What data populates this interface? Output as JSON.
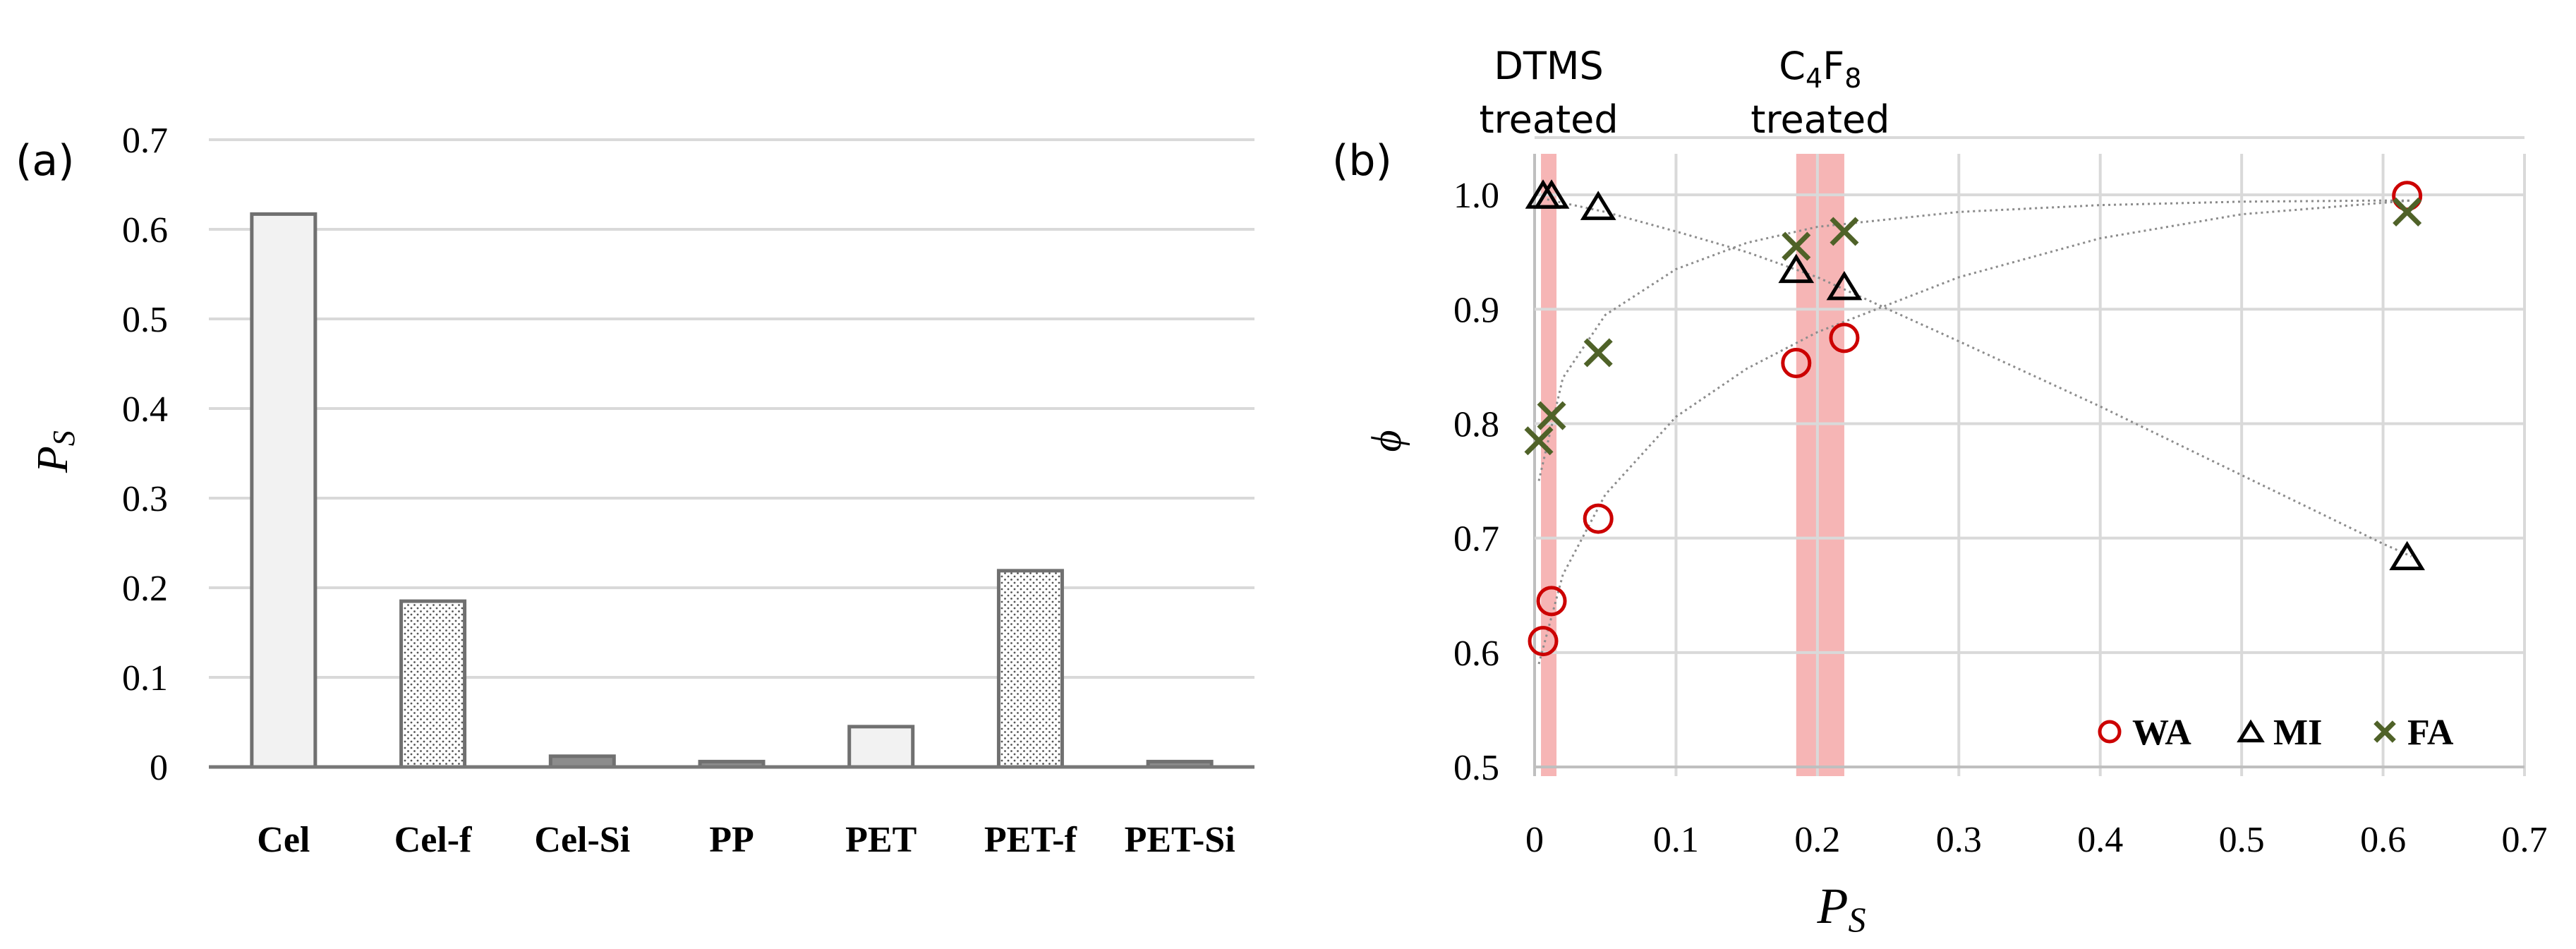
{
  "chart_data": [
    {
      "type": "bar",
      "panel_label": "(a)",
      "categories": [
        "Cel",
        "Cel-f",
        "Cel-Si",
        "PP",
        "PET",
        "PET-f",
        "PET-Si"
      ],
      "values": [
        0.617,
        0.185,
        0.012,
        0.006,
        0.045,
        0.219,
        0.006
      ],
      "bar_fill": [
        "solid",
        "dotted",
        "dark",
        "dark",
        "solid",
        "dotted",
        "dark"
      ],
      "ylabel": "P",
      "ylabel_sub": "S",
      "xlabel": "",
      "ylim": [
        0,
        0.7
      ],
      "yticks": [
        0,
        0.1,
        0.2,
        0.3,
        0.4,
        0.5,
        0.6,
        0.7
      ],
      "ytick_labels": [
        "0",
        "0.1",
        "0.2",
        "0.3",
        "0.4",
        "0.5",
        "0.6",
        "0.7"
      ],
      "grid": true
    },
    {
      "type": "scatter",
      "panel_label": "(b)",
      "xlabel": "P",
      "xlabel_sub": "S",
      "ylabel": "ϕ",
      "xlim": [
        0,
        0.7
      ],
      "ylim": [
        0.5,
        1.05
      ],
      "xticks": [
        0,
        0.1,
        0.2,
        0.3,
        0.4,
        0.5,
        0.6,
        0.7
      ],
      "xtick_labels": [
        "0",
        "0.1",
        "0.2",
        "0.3",
        "0.4",
        "0.5",
        "0.6",
        "0.7"
      ],
      "yticks": [
        0.5,
        0.6,
        0.7,
        0.8,
        0.9,
        1.0
      ],
      "ytick_labels": [
        "0.5",
        "0.6",
        "0.7",
        "0.8",
        "0.9",
        "1.0"
      ],
      "grid": true,
      "legend_position": "bottom-right",
      "series": [
        {
          "name": "WA",
          "marker": "circle",
          "color": "#cc0000",
          "x": [
            0.006,
            0.012,
            0.045,
            0.185,
            0.219,
            0.617
          ],
          "y": [
            0.61,
            0.645,
            0.717,
            0.853,
            0.875,
            0.999
          ],
          "trend_x": [
            0.003,
            0.02,
            0.05,
            0.1,
            0.15,
            0.2,
            0.3,
            0.4,
            0.5,
            0.6,
            0.62
          ],
          "trend_y": [
            0.59,
            0.668,
            0.738,
            0.806,
            0.848,
            0.88,
            0.928,
            0.962,
            0.983,
            0.993,
            0.995
          ]
        },
        {
          "name": "MI",
          "marker": "triangle",
          "color": "#000000",
          "x": [
            0.006,
            0.012,
            0.045,
            0.185,
            0.219,
            0.617
          ],
          "y": [
            1.0,
            1.0,
            0.99,
            0.935,
            0.92,
            0.684
          ],
          "trend_x": [
            0.005,
            0.05,
            0.1,
            0.15,
            0.2,
            0.3,
            0.4,
            0.5,
            0.6,
            0.62
          ],
          "trend_y": [
            0.997,
            0.985,
            0.968,
            0.95,
            0.928,
            0.872,
            0.815,
            0.755,
            0.695,
            0.684
          ]
        },
        {
          "name": "FA",
          "marker": "x",
          "color": "#4f6228",
          "x": [
            0.003,
            0.012,
            0.045,
            0.185,
            0.219,
            0.617
          ],
          "y": [
            0.785,
            0.807,
            0.862,
            0.955,
            0.968,
            0.985
          ],
          "trend_x": [
            0.003,
            0.02,
            0.05,
            0.1,
            0.15,
            0.2,
            0.3,
            0.4,
            0.5,
            0.6,
            0.62
          ],
          "trend_y": [
            0.75,
            0.84,
            0.895,
            0.935,
            0.958,
            0.972,
            0.985,
            0.991,
            0.994,
            0.995,
            0.995
          ]
        }
      ],
      "highlight_bands": [
        {
          "label_line1": "DTMS",
          "label_line2": "treated",
          "x_from": 0.005,
          "x_to": 0.015,
          "color": "#f4a3a3"
        },
        {
          "label_line1": "C4F8",
          "label_line2": "treated",
          "x_from": 0.185,
          "x_to": 0.219,
          "color": "#f4a3a3"
        }
      ]
    }
  ]
}
